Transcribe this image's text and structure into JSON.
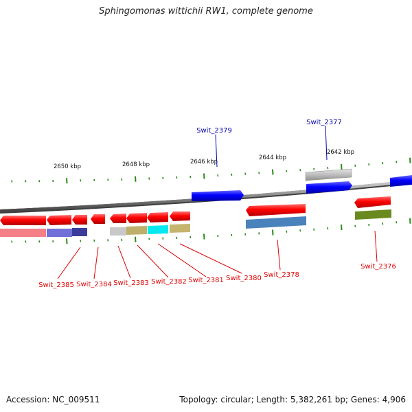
{
  "title": "Sphingomonas wittichii RW1, complete genome",
  "footer": {
    "accession": "Accession: NC_009511",
    "summary": "Topology: circular; Length: 5,382,261 bp; Genes: 4,906"
  },
  "scale_labels": [
    "2650 kbp",
    "2648 kbp",
    "2646 kbp",
    "2644 kbp",
    "2642 kbp"
  ],
  "gene_labels": {
    "forward": [
      "Swit_2379",
      "Swit_2377"
    ],
    "reverse": [
      "Swit_2385",
      "Swit_2384",
      "Swit_2383",
      "Swit_2382",
      "Swit_2381",
      "Swit_2380",
      "Swit_2378",
      "Swit_2376"
    ]
  },
  "colors": {
    "forward_strand": "#0000ff",
    "reverse_strand": "#ff0000",
    "forward_label": "#0000aa",
    "reverse_label": "#dd0000",
    "tick": "#2a8a1a",
    "backbone": "#888888"
  }
}
